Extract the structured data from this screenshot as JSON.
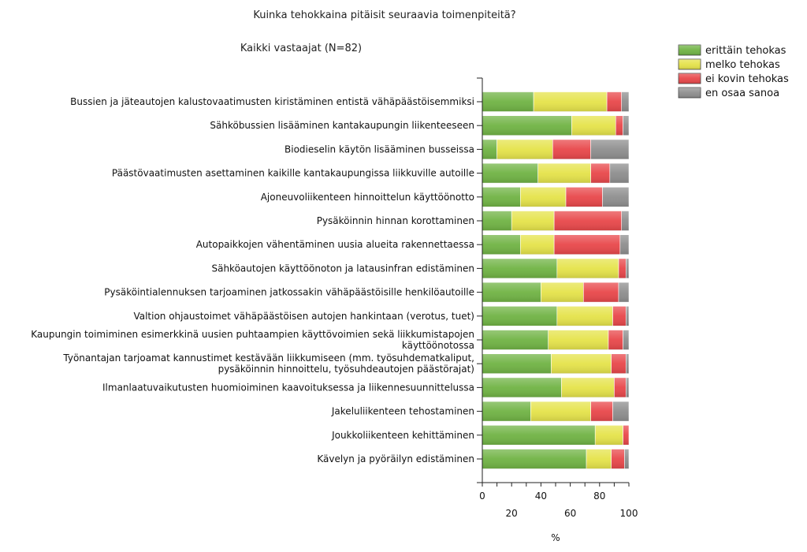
{
  "chart_data": {
    "type": "bar",
    "stacked": true,
    "orientation": "horizontal",
    "title": "Kuinka tehokkaina pitäisit seuraavia toimenpiteitä?",
    "subtitle": "Kaikki vastaajat (N=82)",
    "xlabel": "%",
    "xlim": [
      0,
      100
    ],
    "xticks_upper": [
      "0",
      "40",
      "80"
    ],
    "xticks_lower": [
      "20",
      "60",
      "100"
    ],
    "legend_position": "top-right",
    "categories": [
      [
        "Bussien ja jäteautojen kalustovaatimusten kiristäminen entistä vähäpäästöisemmiksi"
      ],
      [
        "Sähköbussien lisääminen kantakaupungin liikenteeseen"
      ],
      [
        "Biodieselin käytön lisääminen busseissa"
      ],
      [
        "Päästövaatimusten asettaminen kaikille kantakaupungissa liikkuville autoille"
      ],
      [
        "Ajoneuvoliikenteen hinnoittelun käyttöönotto"
      ],
      [
        "Pysäköinnin hinnan korottaminen"
      ],
      [
        "Autopaikkojen vähentäminen uusia alueita rakennettaessa"
      ],
      [
        "Sähköautojen käyttöönoton ja latausinfran edistäminen"
      ],
      [
        "Pysäköintialennuksen tarjoaminen jatkossakin vähäpäästöisille henkilöautoille"
      ],
      [
        "Valtion ohjaustoimet vähäpäästöisen autojen hankintaan (verotus, tuet)"
      ],
      [
        "Kaupungin toimiminen esimerkkinä uusien puhtaampien käyttövoimien sekä liikkumistapojen",
        "käyttöönotossa"
      ],
      [
        "Työnantajan tarjoamat kannustimet kestävään liikkumiseen (mm. työsuhdematkaliput,",
        "pysäköinnin hinnoittelu, työsuhdeautojen päästörajat)"
      ],
      [
        "Ilmanlaatuvaikutusten huomioiminen kaavoituksessa ja liikennesuunnittelussa"
      ],
      [
        "Jakeluliikenteen tehostaminen"
      ],
      [
        "Joukkoliikenteen kehittäminen"
      ],
      [
        "Kävelyn ja pyöräilyn edistäminen"
      ]
    ],
    "series": [
      {
        "name": "erittäin tehokas",
        "color": "#70b344",
        "values": [
          35,
          61,
          10,
          38,
          26,
          20,
          26,
          51,
          40,
          51,
          45,
          47,
          54,
          33,
          77,
          71
        ]
      },
      {
        "name": "melko tehokas",
        "color": "#e5e34a",
        "values": [
          50,
          30,
          38,
          36,
          31,
          29,
          23,
          42,
          29,
          38,
          41,
          41,
          36,
          41,
          19,
          17
        ]
      },
      {
        "name": "ei kovin tehokas",
        "color": "#e8474a",
        "values": [
          10,
          5,
          26,
          13,
          25,
          46,
          45,
          5,
          24,
          9,
          10,
          10,
          8,
          15,
          4,
          9
        ]
      },
      {
        "name": "en osaa sanoa",
        "color": "#8e8e8e",
        "values": [
          5,
          4,
          26,
          13,
          18,
          5,
          6,
          2,
          7,
          2,
          4,
          2,
          2,
          11,
          0,
          3
        ]
      }
    ]
  }
}
